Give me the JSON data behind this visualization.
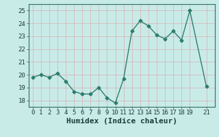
{
  "x": [
    0,
    1,
    2,
    3,
    4,
    5,
    6,
    7,
    8,
    9,
    10,
    11,
    12,
    13,
    14,
    15,
    16,
    17,
    18,
    19,
    21
  ],
  "y": [
    19.8,
    20.0,
    19.8,
    20.1,
    19.5,
    18.7,
    18.5,
    18.5,
    19.0,
    18.2,
    17.8,
    19.7,
    23.4,
    24.2,
    23.8,
    23.1,
    22.8,
    23.4,
    22.7,
    25.0,
    19.1
  ],
  "line_color": "#2e7d6e",
  "marker": "D",
  "marker_size": 2.5,
  "line_width": 1.0,
  "bg_color": "#c8ebe8",
  "xlabel": "Humidex (Indice chaleur)",
  "xlabel_fontsize": 8,
  "ylim": [
    17.5,
    25.5
  ],
  "xlim": [
    -0.5,
    22.0
  ],
  "yticks": [
    18,
    19,
    20,
    21,
    22,
    23,
    24,
    25
  ],
  "xticks": [
    0,
    1,
    2,
    3,
    4,
    5,
    6,
    7,
    8,
    9,
    10,
    11,
    12,
    13,
    14,
    15,
    16,
    17,
    18,
    19,
    21
  ],
  "tick_fontsize": 6.5,
  "grid_color": "#d8b0b0",
  "spine_color": "#2e7d6e"
}
